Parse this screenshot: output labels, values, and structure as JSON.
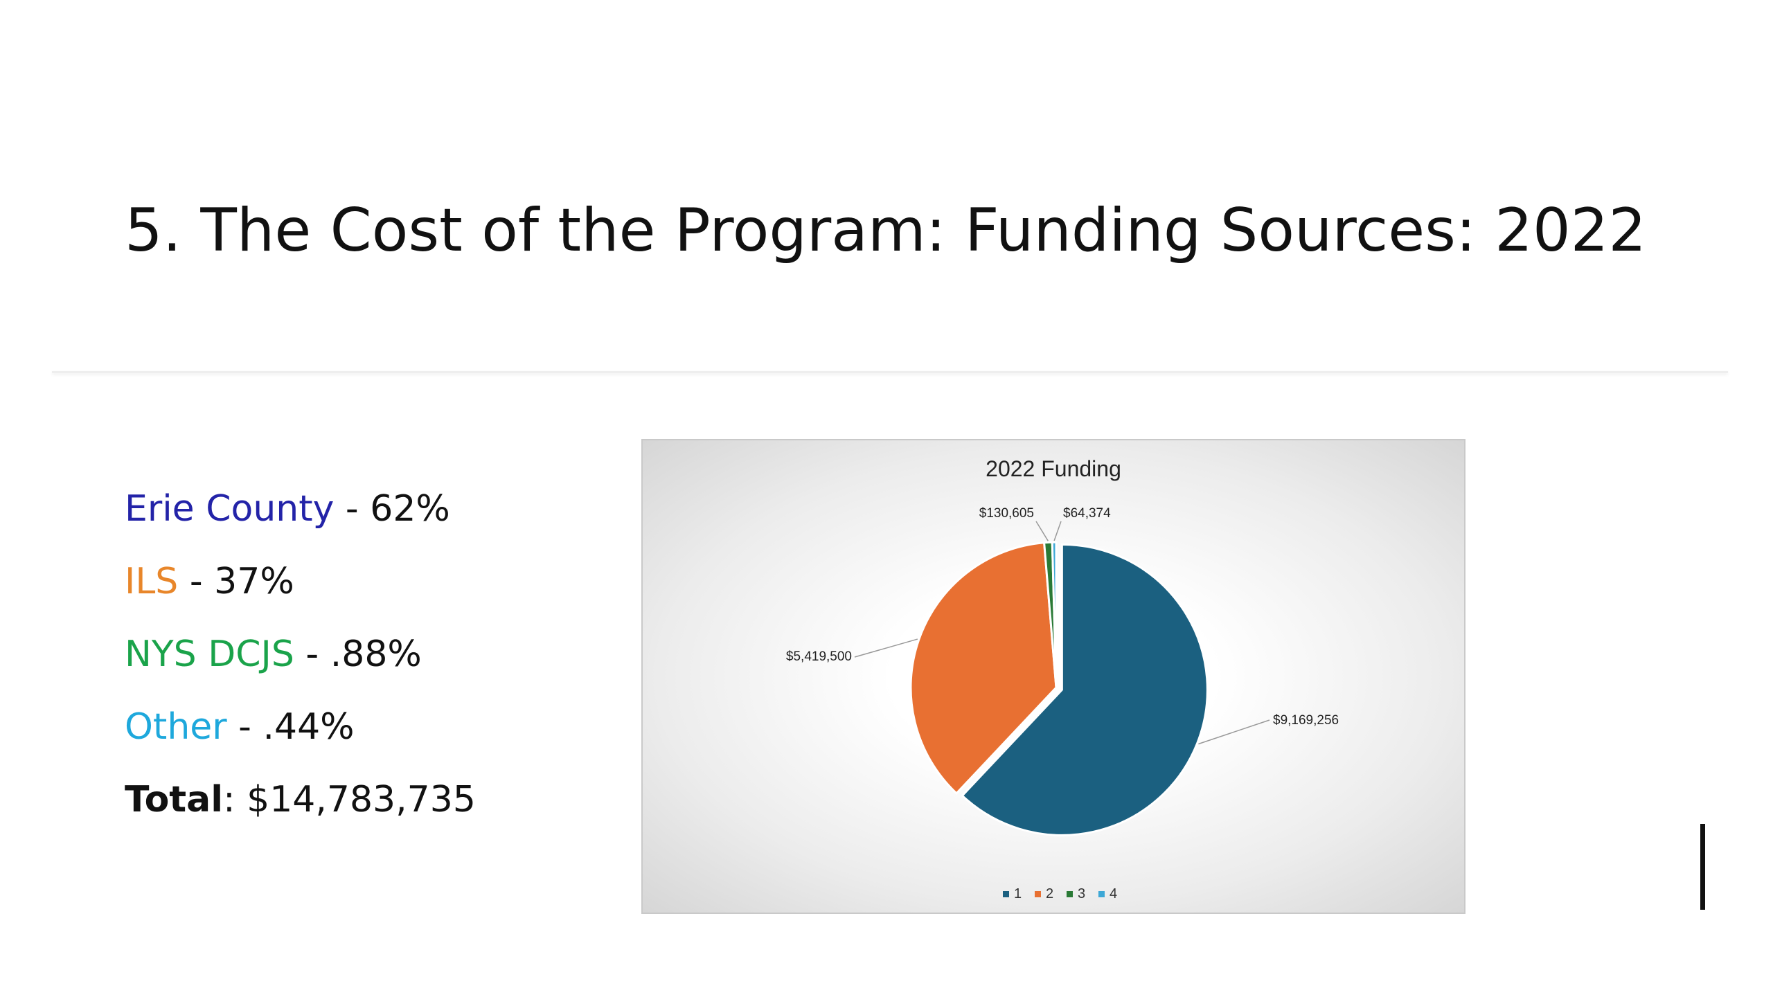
{
  "slide": {
    "title": "5.  The Cost of the Program: Funding Sources: 2022"
  },
  "funding_sources": [
    {
      "name": "Erie County",
      "value_text": " - 62%",
      "color": "#2323a8"
    },
    {
      "name": "ILS",
      "value_text": " - 37%",
      "color": "#e8862a"
    },
    {
      "name": "NYS DCJS",
      "value_text": " - .88%",
      "color": "#1aa34a"
    },
    {
      "name": "Other",
      "value_text": " - .44%",
      "color": "#1ea8dc"
    }
  ],
  "total": {
    "label": "Total",
    "value_text": ": $14,783,735"
  },
  "chart_data": {
    "type": "pie",
    "title": "2022 Funding",
    "categories": [
      "1",
      "2",
      "3",
      "4"
    ],
    "values": [
      9169256,
      5419500,
      130605,
      64374
    ],
    "data_labels": [
      "$9,169,256",
      "$5,419,500",
      "$130,605",
      "$64,374"
    ],
    "colors": [
      "#1b6080",
      "#e87032",
      "#2a7a36",
      "#3da8d6"
    ],
    "legend_position": "bottom",
    "exploded_slice": "1"
  }
}
